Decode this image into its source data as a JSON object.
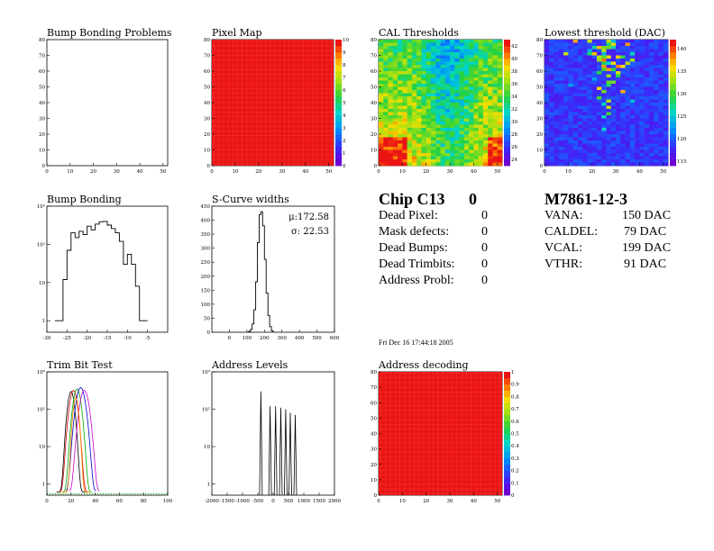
{
  "chart_data": [
    {
      "id": "bump",
      "type": "heatmap",
      "title": "Bump Bonding Problems",
      "xlim": [
        0,
        52
      ],
      "ylim": [
        0,
        80
      ],
      "xticks": [
        "0",
        "10",
        "20",
        "30",
        "40",
        "50"
      ],
      "yticks": [
        "0",
        "10",
        "20",
        "30",
        "40",
        "50",
        "60",
        "70",
        "80"
      ],
      "empty": true
    },
    {
      "id": "pixmap",
      "type": "heatmap",
      "title": "Pixel Map",
      "xlim": [
        0,
        52
      ],
      "ylim": [
        0,
        80
      ],
      "xticks": [
        "0",
        "10",
        "20",
        "30",
        "40",
        "50"
      ],
      "yticks": [
        "0",
        "10",
        "20",
        "30",
        "40",
        "50",
        "60",
        "70",
        "80"
      ],
      "uniform_value": 10,
      "zlim": [
        0,
        10
      ],
      "zticks": [
        "0",
        "1",
        "2",
        "3",
        "4",
        "5",
        "6",
        "7",
        "8",
        "9",
        "10"
      ]
    },
    {
      "id": "cal",
      "type": "heatmap",
      "title": "CAL Thresholds",
      "xlim": [
        0,
        52
      ],
      "ylim": [
        0,
        80
      ],
      "xticks": [
        "0",
        "10",
        "20",
        "30",
        "40",
        "50"
      ],
      "yticks": [
        "0",
        "10",
        "20",
        "30",
        "40",
        "50",
        "60",
        "70",
        "80"
      ],
      "zlim": [
        23,
        43
      ],
      "zticks": [
        "24",
        "26",
        "28",
        "30",
        "32",
        "34",
        "36",
        "38",
        "40",
        "42"
      ]
    },
    {
      "id": "lowest",
      "type": "heatmap",
      "title": "Lowest threshold (DAC)",
      "xlim": [
        0,
        52
      ],
      "ylim": [
        0,
        80
      ],
      "xticks": [
        "0",
        "10",
        "20",
        "30",
        "40",
        "50"
      ],
      "yticks": [
        "0",
        "10",
        "20",
        "30",
        "40",
        "50",
        "60",
        "70",
        "80"
      ],
      "zlim": [
        114,
        142
      ],
      "zticks": [
        "115",
        "120",
        "125",
        "130",
        "135",
        "140"
      ]
    },
    {
      "id": "bb",
      "type": "line",
      "title": "Bump Bonding",
      "log_y": true,
      "xlim": [
        -30,
        0
      ],
      "ylim": [
        0.5,
        1000
      ],
      "xticks": [
        "-30",
        "-25",
        "-20",
        "-15",
        "-10",
        "-5"
      ],
      "yticks": [
        "1",
        "10",
        "10²",
        "10³"
      ],
      "x": [
        -28,
        -26.5,
        -26,
        -25,
        -24,
        -23,
        -22,
        -21,
        -20,
        -19,
        -18,
        -17,
        -16,
        -15,
        -14,
        -13,
        -12,
        -11,
        -10,
        -9,
        -8,
        -7,
        -6,
        -5
      ],
      "y": [
        1,
        1,
        12,
        70,
        200,
        150,
        220,
        180,
        300,
        240,
        340,
        390,
        400,
        320,
        260,
        200,
        120,
        30,
        55,
        30,
        8,
        1,
        1,
        1
      ]
    },
    {
      "id": "scurve",
      "type": "line",
      "title": "S-Curve widths",
      "xlim": [
        -100,
        600
      ],
      "ylim": [
        0,
        450
      ],
      "xticks": [
        "0",
        "100",
        "200",
        "300",
        "400",
        "500",
        "600"
      ],
      "yticks": [
        "0",
        "50",
        "100",
        "150",
        "200",
        "250",
        "300",
        "350",
        "400",
        "450"
      ],
      "x": [
        100,
        110,
        120,
        130,
        140,
        150,
        160,
        170,
        180,
        190,
        200,
        210,
        220,
        230,
        240,
        250
      ],
      "y": [
        0,
        3,
        10,
        30,
        80,
        180,
        320,
        420,
        430,
        380,
        260,
        140,
        60,
        20,
        5,
        0
      ],
      "stats": {
        "mu": "μ:172.58",
        "sigma": "σ: 22.53"
      }
    },
    {
      "id": "trim",
      "type": "line",
      "title": "Trim Bit Test",
      "log_y": true,
      "xlim": [
        0,
        100
      ],
      "ylim": [
        0.5,
        1000
      ],
      "xticks": [
        "0",
        "20",
        "40",
        "60",
        "80",
        "100"
      ],
      "yticks": [
        "1",
        "10",
        "10²",
        "10³"
      ]
    },
    {
      "id": "addr",
      "type": "line",
      "title": "Address Levels",
      "log_y": true,
      "xlim": [
        -2000,
        2000
      ],
      "ylim": [
        0.5,
        1000
      ],
      "xticks": [
        "-2000",
        "-1500",
        "-1000",
        "-500",
        "0",
        "500",
        "1000",
        "1500",
        "2000"
      ],
      "yticks": [
        "1",
        "10",
        "10²",
        "10³"
      ],
      "peaks": [
        {
          "x": -400,
          "h": 300
        },
        {
          "x": -100,
          "h": 120
        },
        {
          "x": 80,
          "h": 120
        },
        {
          "x": 250,
          "h": 110
        },
        {
          "x": 410,
          "h": 100
        },
        {
          "x": 560,
          "h": 80
        },
        {
          "x": 720,
          "h": 70
        }
      ]
    },
    {
      "id": "decode",
      "type": "heatmap",
      "title": "Address decoding",
      "xlim": [
        0,
        52
      ],
      "ylim": [
        0,
        80
      ],
      "xticks": [
        "0",
        "10",
        "20",
        "30",
        "40",
        "50"
      ],
      "yticks": [
        "0",
        "10",
        "20",
        "30",
        "40",
        "50",
        "60",
        "70",
        "80"
      ],
      "uniform_value": 1,
      "zlim": [
        0,
        1
      ],
      "zticks": [
        "0",
        "0.1",
        "0.2",
        "0.3",
        "0.4",
        "0.5",
        "0.6",
        "0.7",
        "0.8",
        "0.9",
        "1"
      ]
    }
  ],
  "chip": {
    "title": "Chip C13",
    "number": "0",
    "rows": [
      {
        "label": "Dead Pixel:",
        "value": "0"
      },
      {
        "label": "Mask defects:",
        "value": "0"
      },
      {
        "label": "Dead Bumps:",
        "value": "0"
      },
      {
        "label": "Dead Trimbits:",
        "value": "0"
      },
      {
        "label": "Address Probl:",
        "value": "0"
      }
    ]
  },
  "module": {
    "title": "M7861-12-3",
    "rows": [
      {
        "label": "VANA:",
        "value": "150 DAC"
      },
      {
        "label": "CALDEL:",
        "value": "79 DAC"
      },
      {
        "label": "VCAL:",
        "value": "199 DAC"
      },
      {
        "label": "VTHR:",
        "value": "91 DAC"
      }
    ]
  },
  "timestamp": "Fri Dec 16 17:44:18 2005"
}
